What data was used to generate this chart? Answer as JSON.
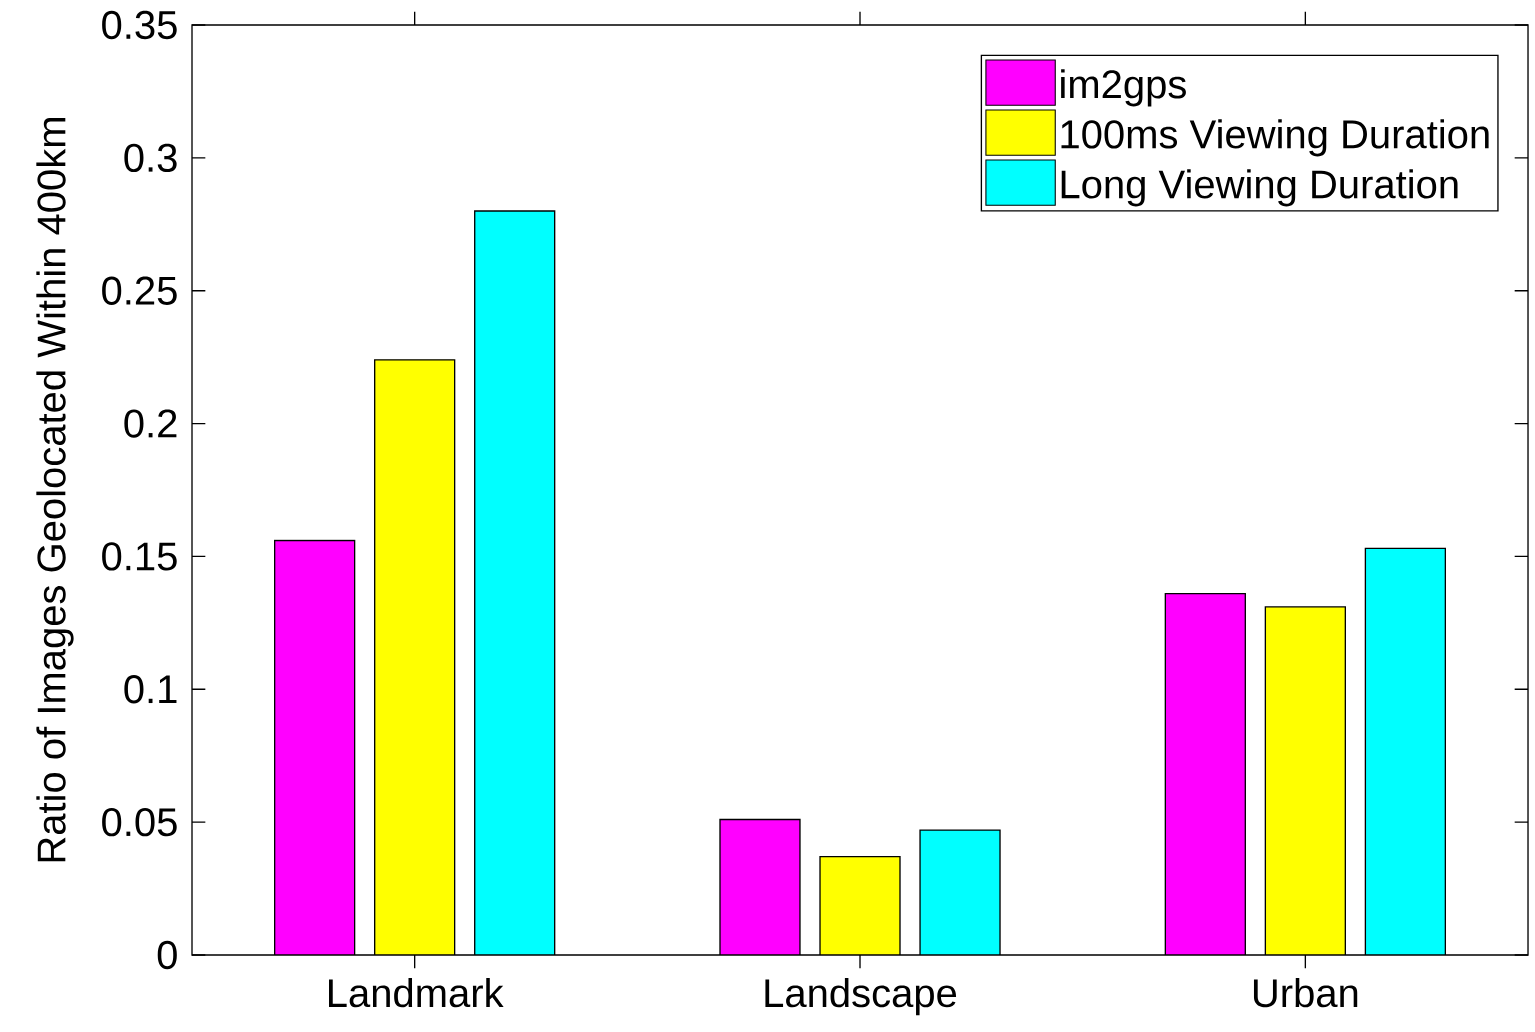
{
  "chart_data": {
    "type": "bar",
    "ylabel": "Ratio of Images Geolocated Within 400km",
    "categories": [
      "Landmark",
      "Landscape",
      "Urban"
    ],
    "series": [
      {
        "name": "im2gps",
        "color": "#ff00ff",
        "values": [
          0.156,
          0.051,
          0.136
        ]
      },
      {
        "name": "100ms Viewing Duration",
        "color": "#ffff00",
        "values": [
          0.224,
          0.037,
          0.131
        ]
      },
      {
        "name": "Long Viewing Duration",
        "color": "#00ffff",
        "values": [
          0.28,
          0.047,
          0.153
        ]
      }
    ],
    "ylim": [
      0,
      0.35
    ],
    "yticks": [
      0,
      0.05,
      0.1,
      0.15,
      0.2,
      0.25,
      0.3,
      0.35
    ],
    "legend": "top right"
  }
}
